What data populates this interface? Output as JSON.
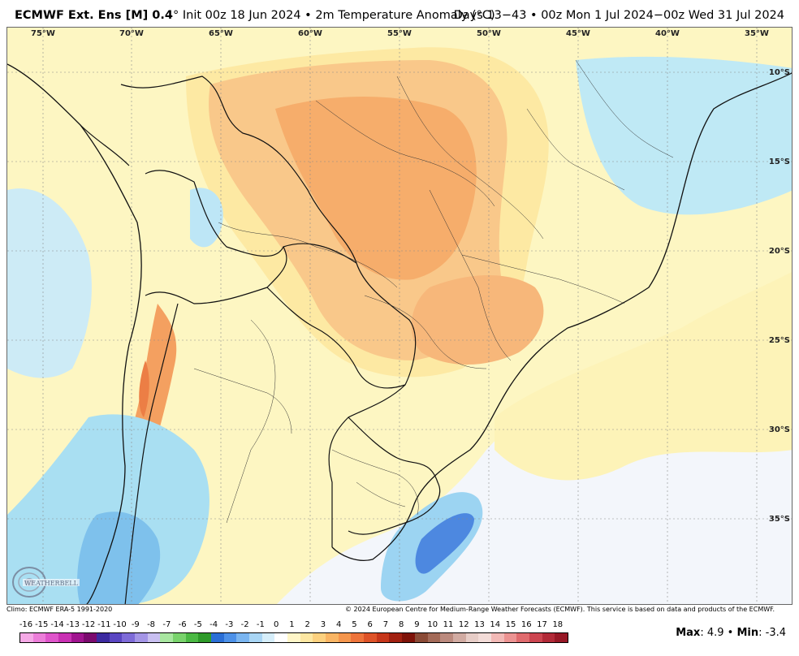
{
  "header": {
    "model": "ECMWF Ext. Ens [M] 0.4",
    "init": "° Init 00z 18 Jun 2024 • 2m Temperature Anomaly (°C)",
    "valid": "Days 13−43 • 00z Mon 1 Jul 2024−00z Wed 31 Jul 2024"
  },
  "map": {
    "lon_labels": [
      "75°W",
      "70°W",
      "65°W",
      "60°W",
      "55°W",
      "50°W",
      "45°W",
      "40°W",
      "35°W"
    ],
    "lat_labels": [
      "10°S",
      "15°S",
      "20°S",
      "25°S",
      "30°S",
      "35°S"
    ],
    "logo_text": "WEATHERBELL"
  },
  "footer": {
    "left": "Climo: ECMWF ERA-5 1991-2020",
    "right": "© 2024 European Centre for Medium-Range Weather Forecasts (ECMWF). This service is based on data and products of the ECMWF."
  },
  "colorbar": {
    "labels": [
      "-16",
      "-15",
      "-14",
      "-13",
      "-12",
      "-11",
      "-10",
      "-9",
      "-8",
      "-7",
      "-6",
      "-5",
      "-4",
      "-3",
      "-2",
      "-1",
      "0",
      "1",
      "2",
      "3",
      "4",
      "5",
      "6",
      "7",
      "8",
      "9",
      "10",
      "11",
      "12",
      "13",
      "14",
      "15",
      "16",
      "17",
      "18"
    ],
    "colors": [
      "#f5a9e6",
      "#ec7ed9",
      "#df55cb",
      "#c930b3",
      "#a0148f",
      "#7b0a6e",
      "#3c2aa0",
      "#5a46c2",
      "#7e6bd8",
      "#a495e6",
      "#c8bff0",
      "#a8e6a0",
      "#79d36c",
      "#4bb944",
      "#2e9a2a",
      "#2b6fd6",
      "#4d91e8",
      "#7ab5f0",
      "#a9d6f5",
      "#d6eefa",
      "#ffffff",
      "#fff6c8",
      "#fde7a2",
      "#fcd17f",
      "#f9b564",
      "#f5964d",
      "#ee743b",
      "#de5328",
      "#c6361a",
      "#a12010",
      "#7e1208",
      "#8a4a36",
      "#a36a58",
      "#bb8a7e",
      "#d1aba2",
      "#e7cdc7",
      "#f3dcd8",
      "#f2b9b6",
      "#ec9392",
      "#e06b6e",
      "#cc4550",
      "#b22a38",
      "#971826"
    ]
  },
  "stats": {
    "max_label": "Max",
    "max_value": ": 4.9",
    "sep": " • ",
    "min_label": "Min",
    "min_value": ": -3.4"
  }
}
